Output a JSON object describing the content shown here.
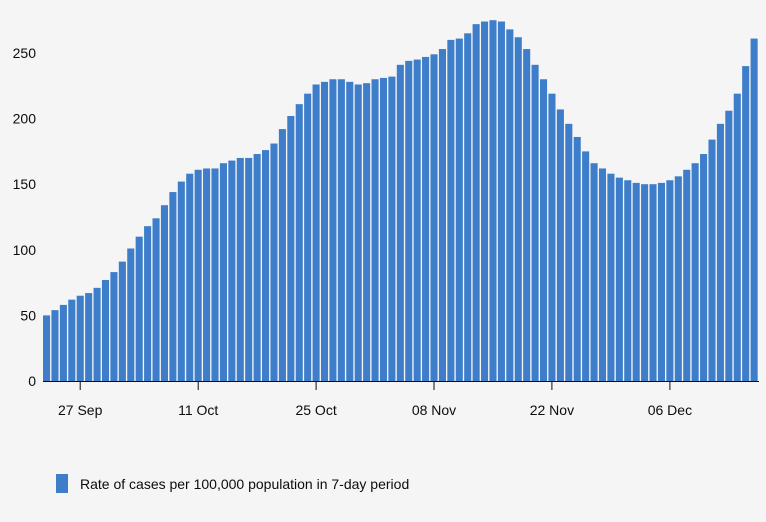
{
  "chart_data": {
    "type": "bar",
    "title": "",
    "xlabel": "",
    "ylabel": "",
    "ylim": [
      0,
      275
    ],
    "yticks": [
      0,
      50,
      100,
      150,
      200,
      250
    ],
    "grid": false,
    "legend_position": "bottom-left",
    "color": "#3d7dca",
    "x_tick_labels": [
      {
        "label": "27 Sep",
        "index": 4
      },
      {
        "label": "11 Oct",
        "index": 18
      },
      {
        "label": "25 Oct",
        "index": 32
      },
      {
        "label": "08 Nov",
        "index": 46
      },
      {
        "label": "22 Nov",
        "index": 60
      },
      {
        "label": "06 Dec",
        "index": 74
      }
    ],
    "series": [
      {
        "name": "Rate of cases per 100,000 population in 7-day period",
        "values": [
          50,
          54,
          58,
          62,
          65,
          67,
          71,
          77,
          83,
          91,
          101,
          110,
          118,
          124,
          134,
          144,
          152,
          158,
          161,
          162,
          162,
          166,
          168,
          170,
          170,
          173,
          176,
          181,
          192,
          202,
          211,
          219,
          226,
          228,
          230,
          230,
          228,
          226,
          227,
          230,
          231,
          232,
          241,
          244,
          245,
          247,
          249,
          253,
          260,
          261,
          265,
          272,
          274,
          275,
          274,
          268,
          262,
          253,
          241,
          230,
          219,
          207,
          196,
          186,
          175,
          166,
          162,
          158,
          155,
          153,
          151,
          150,
          150,
          151,
          153,
          156,
          161,
          166,
          173,
          184,
          196,
          206,
          219,
          240,
          261
        ]
      }
    ]
  }
}
